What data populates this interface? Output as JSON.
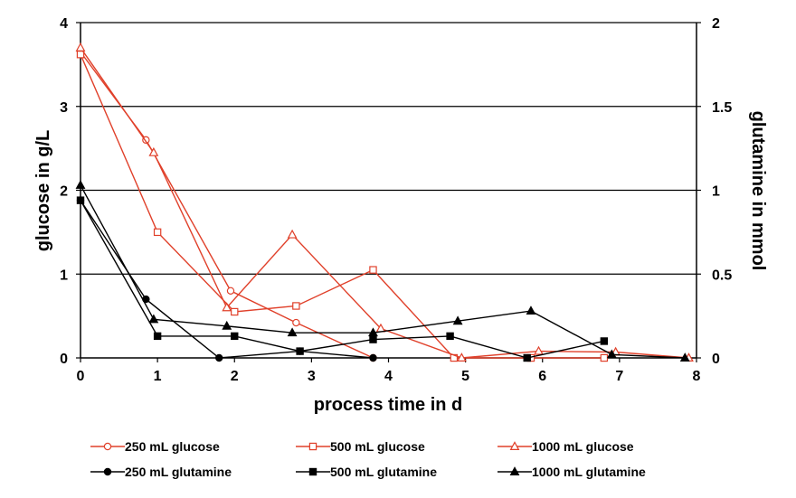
{
  "chart_data": {
    "type": "line",
    "xlabel": "process time in d",
    "ylabel": "glucose in g/L",
    "y2label": "glutamine in mmol",
    "xlim": [
      0,
      8
    ],
    "ylim": [
      0,
      4
    ],
    "y2lim": [
      0,
      2
    ],
    "x_ticks": [
      "0",
      "1",
      "2",
      "3",
      "4",
      "5",
      "6",
      "7",
      "8"
    ],
    "y_ticks": [
      "0",
      "1",
      "2",
      "3",
      "4"
    ],
    "y2_ticks": [
      "0",
      "0.5",
      "1",
      "1.5",
      "2"
    ],
    "grid": "horizontal",
    "legend_position": "bottom",
    "series": [
      {
        "name": "250 mL glucose",
        "axis": "left",
        "color": "#e0402a",
        "marker": "circle-open",
        "x": [
          0,
          0.85,
          1.95,
          2.8,
          3.8
        ],
        "y": [
          3.65,
          2.6,
          0.8,
          0.42,
          0
        ]
      },
      {
        "name": "500 mL glucose",
        "axis": "left",
        "color": "#e0402a",
        "marker": "square-open",
        "x": [
          0,
          1.0,
          2.0,
          2.8,
          3.8,
          4.85,
          5.85,
          6.8
        ],
        "y": [
          3.62,
          1.5,
          0.55,
          0.62,
          1.05,
          0,
          0,
          0
        ]
      },
      {
        "name": "1000 mL glucose",
        "axis": "left",
        "color": "#e0402a",
        "marker": "triangle-open",
        "x": [
          0,
          0.95,
          1.9,
          2.75,
          3.9,
          4.95,
          5.95,
          6.95,
          7.9
        ],
        "y": [
          3.7,
          2.45,
          0.6,
          1.47,
          0.35,
          0,
          0.08,
          0.07,
          0
        ]
      },
      {
        "name": "250 mL glutamine",
        "axis": "right",
        "color": "#000000",
        "marker": "circle-filled",
        "x": [
          0,
          0.85,
          1.8,
          2.85,
          3.8
        ],
        "y": [
          0.94,
          0.35,
          0,
          0.04,
          0
        ]
      },
      {
        "name": "500 mL glutamine",
        "axis": "right",
        "color": "#000000",
        "marker": "square-filled",
        "x": [
          0,
          1.0,
          2.0,
          2.85,
          3.8,
          4.8,
          5.8,
          6.8
        ],
        "y": [
          0.94,
          0.13,
          0.13,
          0.04,
          0.11,
          0.13,
          0,
          0.1
        ]
      },
      {
        "name": "1000 mL glutamine",
        "axis": "right",
        "color": "#000000",
        "marker": "triangle-filled",
        "x": [
          0,
          0.95,
          1.9,
          2.75,
          3.8,
          4.9,
          5.85,
          6.9,
          7.85
        ],
        "y": [
          1.03,
          0.23,
          0.19,
          0.15,
          0.15,
          0.22,
          0.28,
          0.02,
          0
        ]
      }
    ]
  }
}
